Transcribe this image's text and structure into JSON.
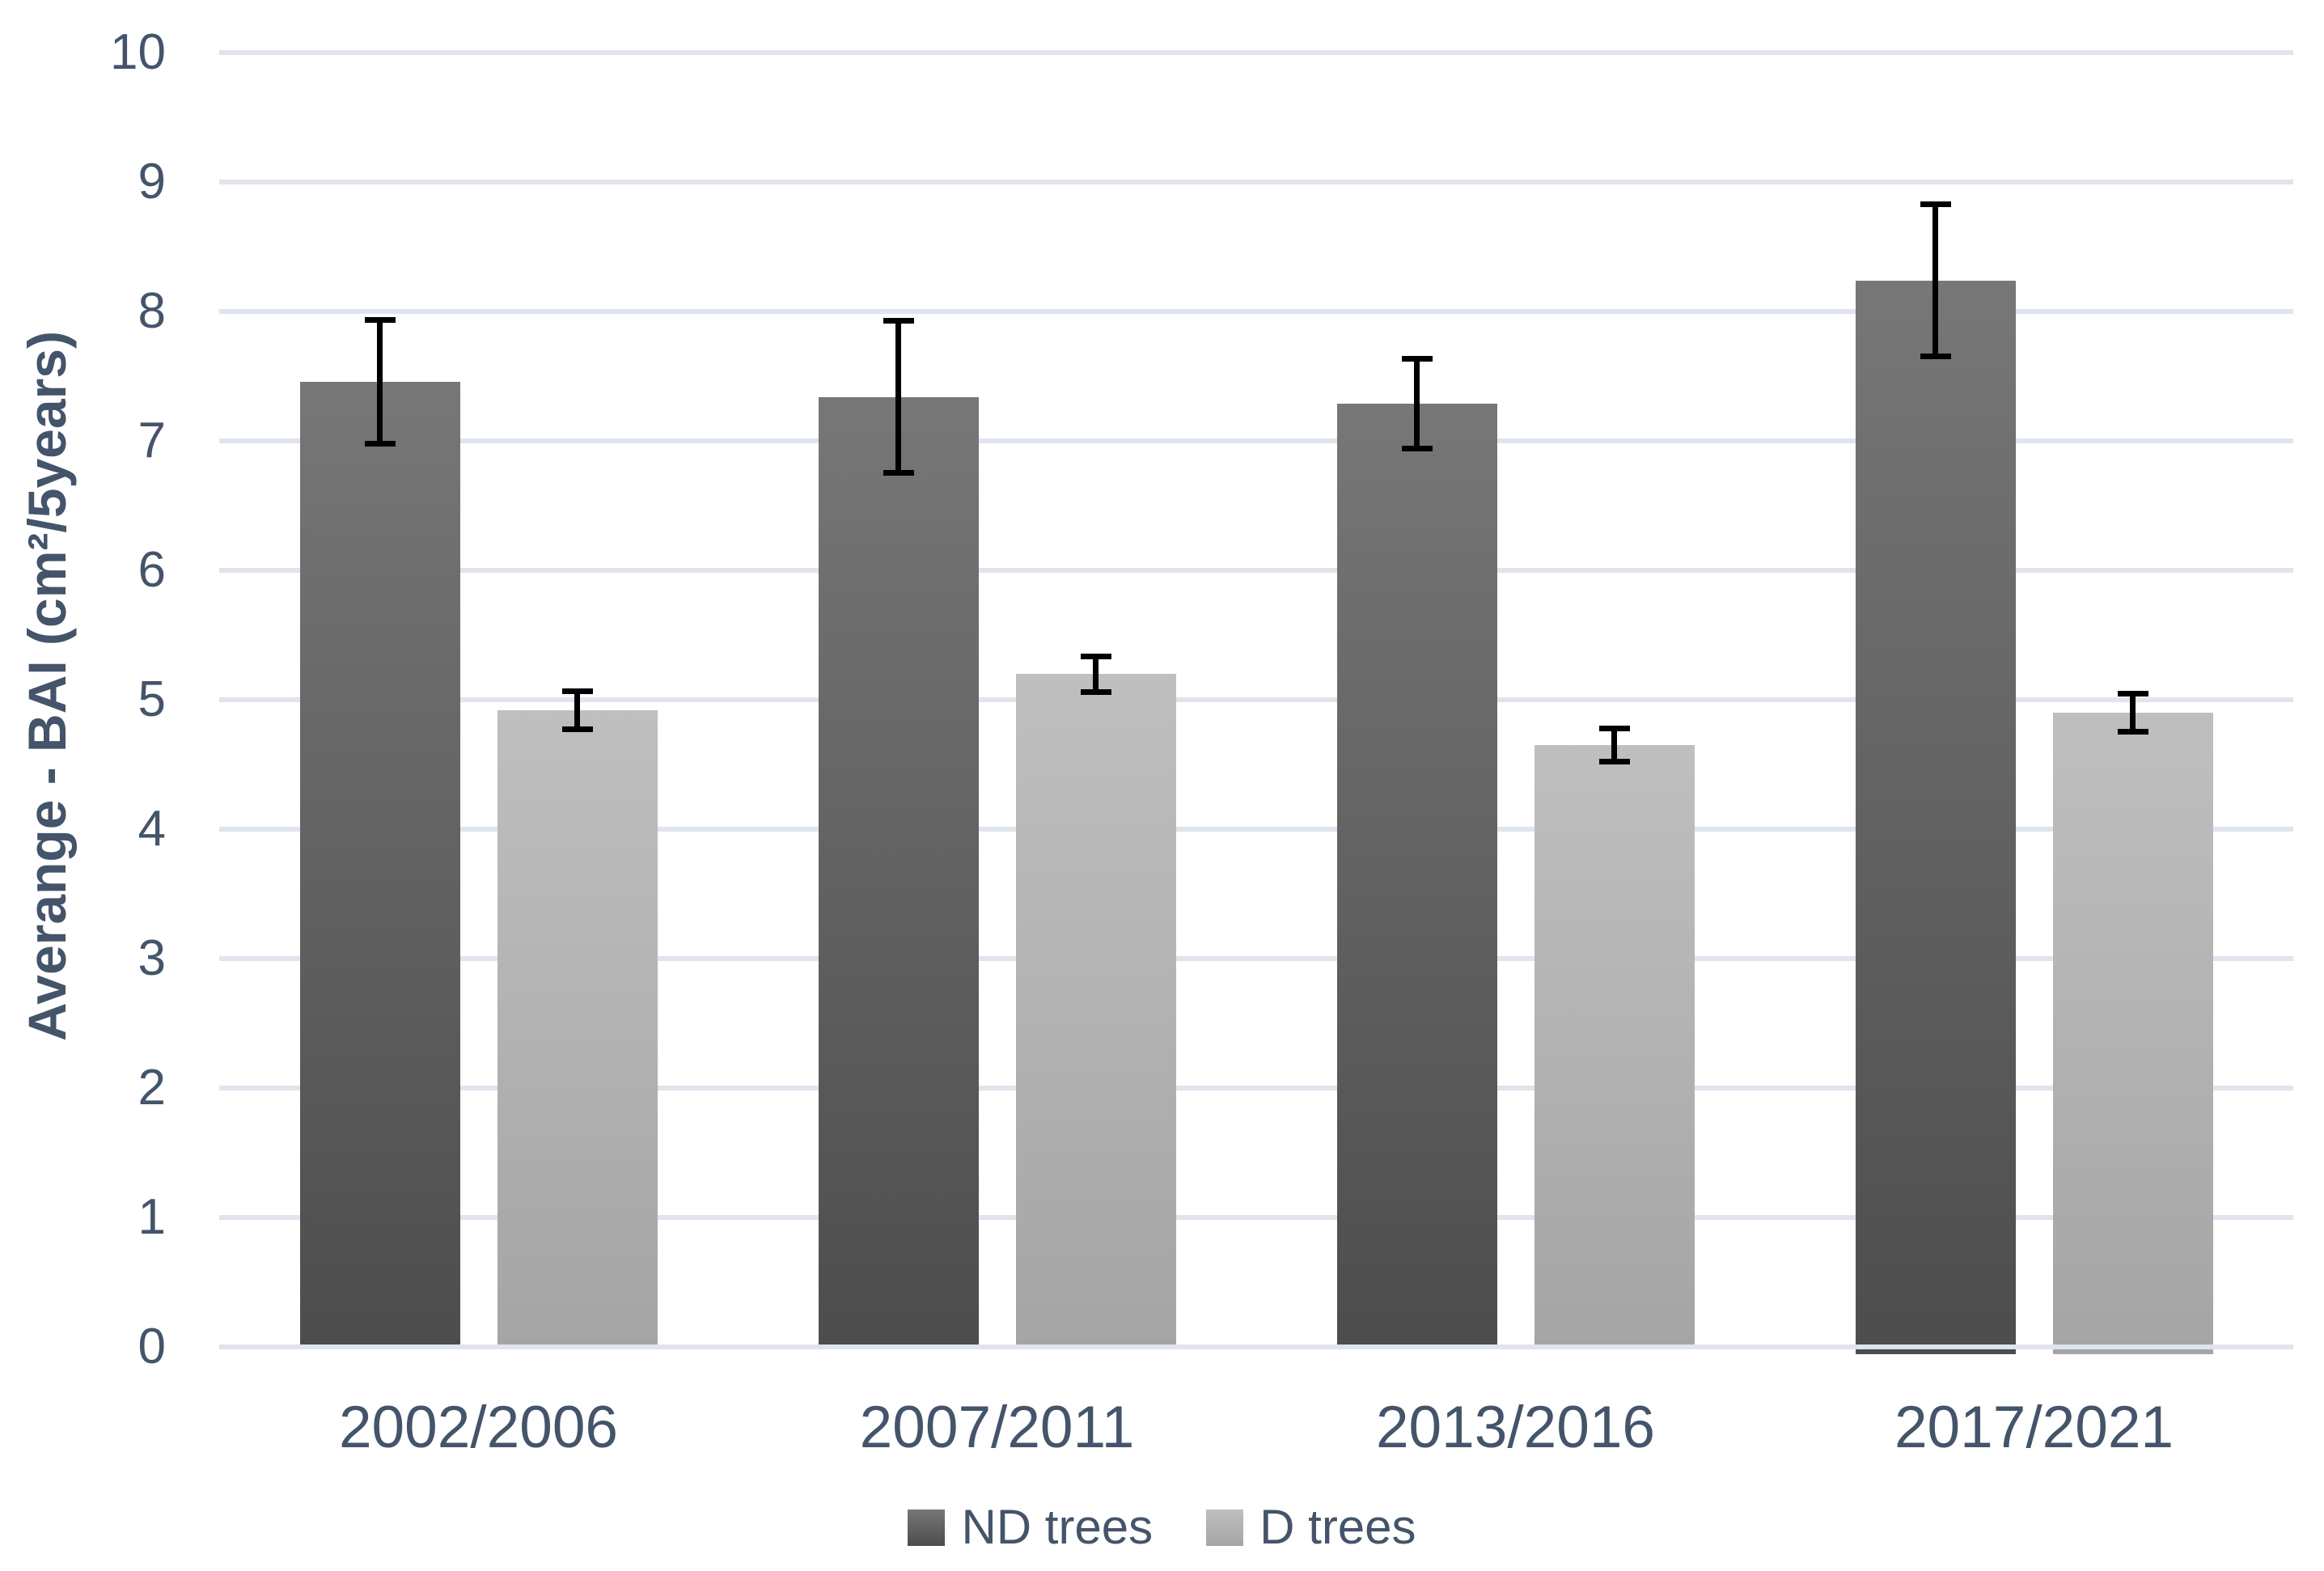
{
  "chart_data": {
    "type": "bar",
    "title": "",
    "xlabel": "",
    "ylabel": "Averange - BAI (cm²/5years)",
    "ylim": [
      0,
      10
    ],
    "yticks": [
      0,
      1,
      2,
      3,
      4,
      5,
      6,
      7,
      8,
      9,
      10
    ],
    "grid": true,
    "error_bars": true,
    "legend_position": "bottom",
    "categories": [
      "2002/2006",
      "2007/2011",
      "2013/2016",
      "2017/2021"
    ],
    "series": [
      {
        "name": "ND trees",
        "values": [
          7.44,
          7.32,
          7.27,
          8.22
        ],
        "errors": [
          0.5,
          0.61,
          0.37,
          0.61
        ],
        "color_top": "#777777",
        "color_bottom": "#4d4d4d"
      },
      {
        "name": "D trees",
        "values": [
          4.9,
          5.18,
          4.63,
          4.88
        ],
        "errors": [
          0.17,
          0.16,
          0.15,
          0.17
        ],
        "color_top": "#bfbfbf",
        "color_bottom": "#a5a5a5"
      }
    ],
    "baseline_tail_groups": [
      "2017/2021"
    ]
  },
  "colors": {
    "background": "#ffffff",
    "axis_text": "#44546A",
    "gridline": "#dfe4ed",
    "error_bar": "#000000"
  }
}
